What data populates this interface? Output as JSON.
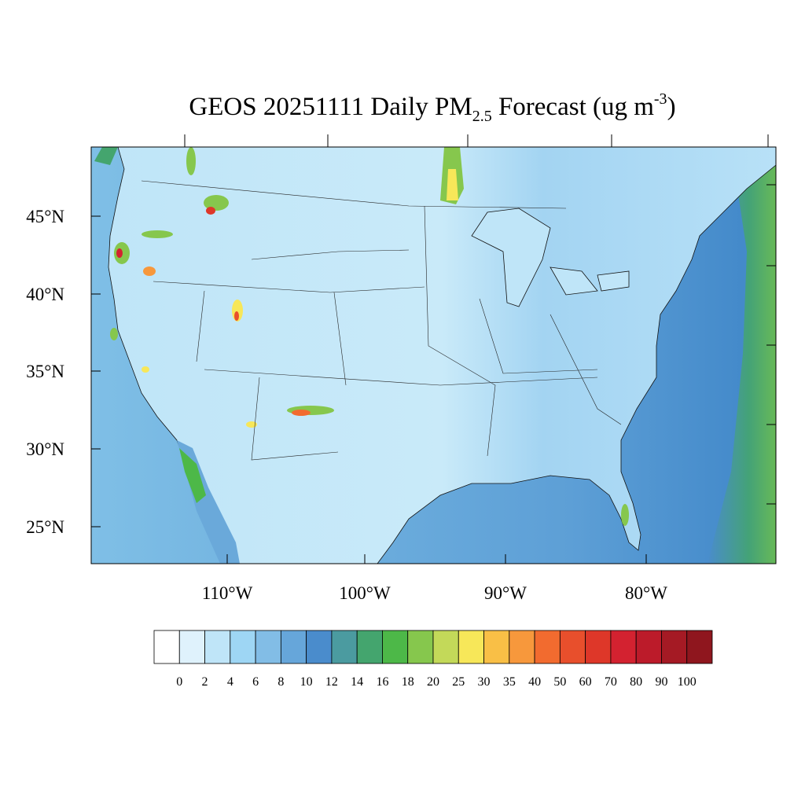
{
  "title": {
    "main": "GEOS 20251111 Daily PM",
    "sub": "2.5",
    "after": " Forecast (ug m",
    "sup": "-3",
    "end": ")"
  },
  "map": {
    "lat_labels": [
      "45°N",
      "40°N",
      "35°N",
      "30°N",
      "25°N"
    ],
    "lon_labels": [
      "110°W",
      "100°W",
      "90°W",
      "80°W"
    ]
  },
  "colorbar": {
    "levels": [
      0,
      2,
      4,
      6,
      8,
      10,
      12,
      14,
      16,
      18,
      20,
      25,
      30,
      35,
      40,
      50,
      60,
      70,
      80,
      90,
      100
    ],
    "colors": [
      "#ffffff",
      "#dff2fc",
      "#bfe5f8",
      "#9ed6f4",
      "#82bde6",
      "#66a6da",
      "#4a8ccc",
      "#4b9ba0",
      "#44a56e",
      "#4db848",
      "#86c74d",
      "#c3d959",
      "#f7e759",
      "#f9bf46",
      "#f7983c",
      "#f26b2f",
      "#e84f2c",
      "#de3729",
      "#d32230",
      "#bc1b2a",
      "#a51a24",
      "#8f161e"
    ]
  }
}
